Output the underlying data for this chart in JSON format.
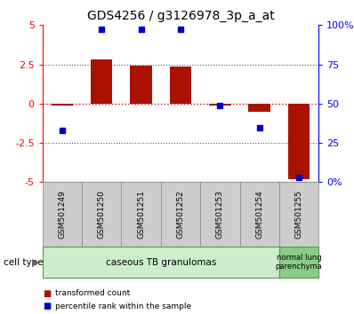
{
  "title": "GDS4256 / g3126978_3p_a_at",
  "samples": [
    "GSM501249",
    "GSM501250",
    "GSM501251",
    "GSM501252",
    "GSM501253",
    "GSM501254",
    "GSM501255"
  ],
  "red_bars": [
    -0.15,
    2.8,
    2.4,
    2.35,
    -0.1,
    -0.5,
    -4.8
  ],
  "blue_squares_left": [
    -1.7,
    4.72,
    4.72,
    4.72,
    -0.15,
    -1.55,
    -4.72
  ],
  "ylim": [
    -5,
    5
  ],
  "yticks_left": [
    -5,
    -2.5,
    0,
    2.5,
    5
  ],
  "ytick_labels_left": [
    "-5",
    "-2.5",
    "0",
    "2.5",
    "5"
  ],
  "ytick_labels_right": [
    "0%",
    "25",
    "50",
    "75",
    "100%"
  ],
  "bar_color": "#aa1100",
  "square_color": "#0000cc",
  "hline_color": "#cc0000",
  "dotted_color": "#555555",
  "group1_label": "caseous TB granulomas",
  "group2_label": "normal lung\nparenchyma",
  "group_color1": "#cceecc",
  "group_color2": "#88cc88",
  "group_edge_color": "#559944",
  "cell_type_label": "cell type",
  "legend1_label": "transformed count",
  "legend2_label": "percentile rank within the sample",
  "bg_color": "#ffffff",
  "sample_box_color": "#cccccc",
  "sample_box_edge": "#888888",
  "bar_width": 0.55,
  "xlim": [
    -0.5,
    6.5
  ]
}
